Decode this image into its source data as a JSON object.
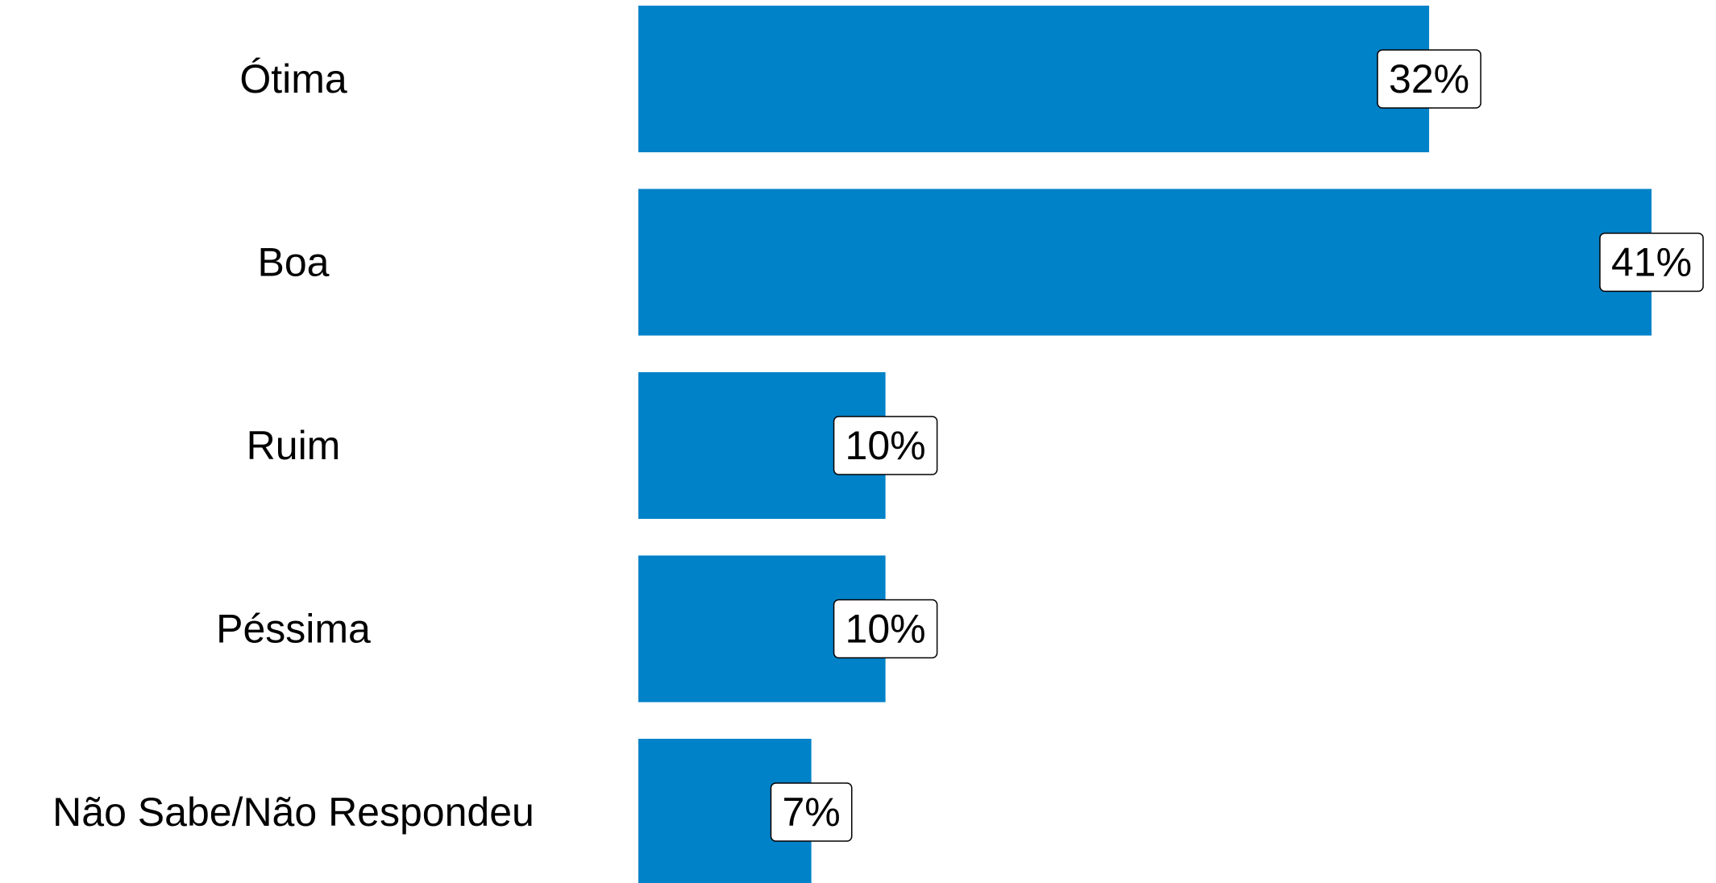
{
  "chart_data": {
    "type": "bar",
    "orientation": "horizontal",
    "categories": [
      "Ótima",
      "Boa",
      "Ruim",
      "Péssima",
      "Não Sabe/Não Respondeu"
    ],
    "values": [
      32,
      41,
      10,
      10,
      7
    ],
    "value_labels": [
      "32%",
      "41%",
      "10%",
      "10%",
      "7%"
    ],
    "color": "#0082c8"
  }
}
